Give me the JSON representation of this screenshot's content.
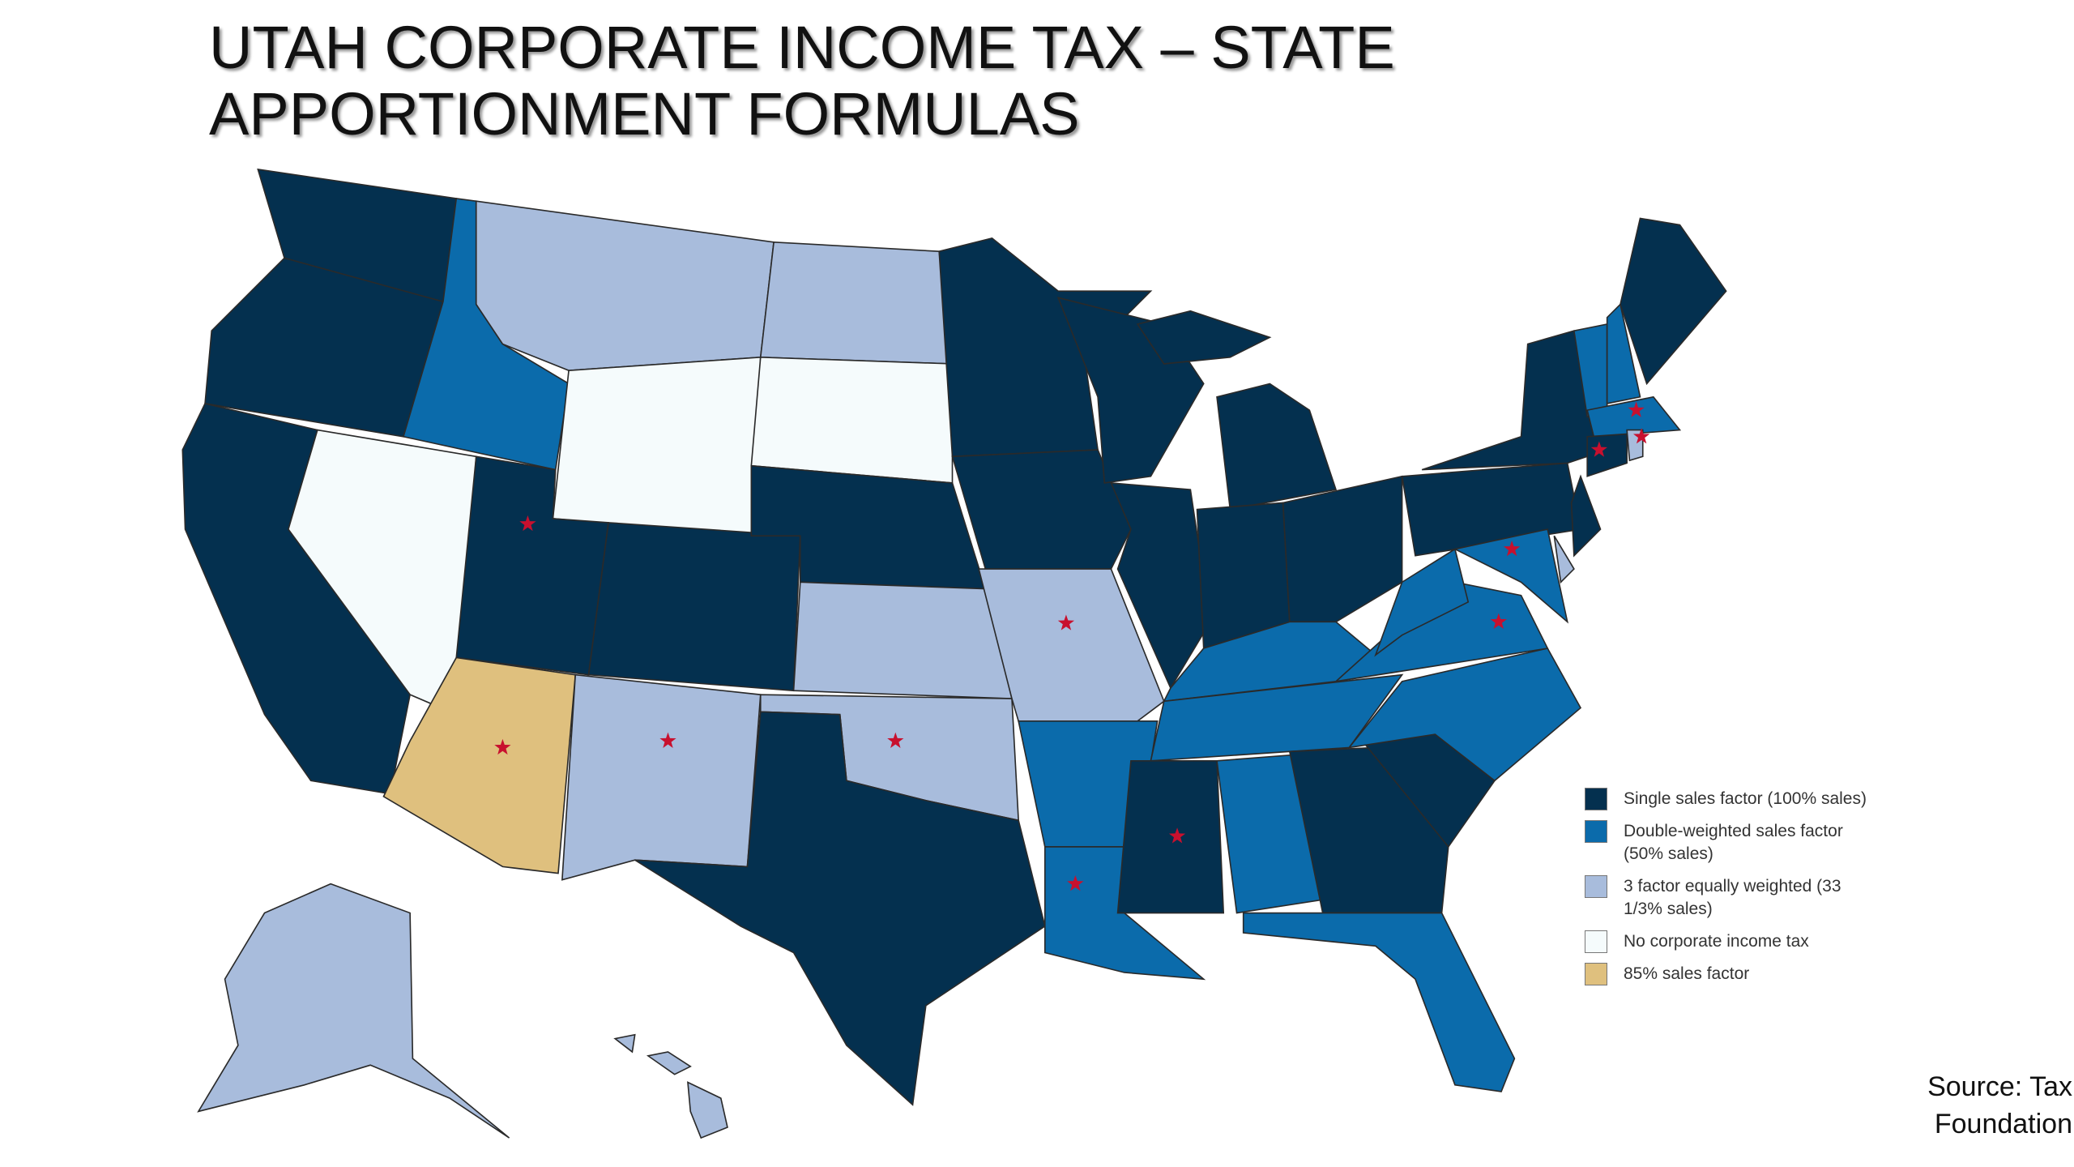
{
  "header": {
    "title": "UTAH CORPORATE INCOME TAX – STATE APPORTIONMENT FORMULAS"
  },
  "legend": {
    "items": [
      {
        "label": "Single sales factor (100% sales)",
        "color": "#04304f"
      },
      {
        "label": "Double-weighted sales factor (50% sales)",
        "color": "#0b6bab"
      },
      {
        "label": "3 factor equally weighted (33 1/3% sales)",
        "color": "#a8bcdc"
      },
      {
        "label": "No corporate income tax",
        "color": "#f5fbfc"
      },
      {
        "label": "85% sales factor",
        "color": "#dfc07e"
      }
    ]
  },
  "footer": {
    "source": "Source: Tax Foundation"
  }
}
